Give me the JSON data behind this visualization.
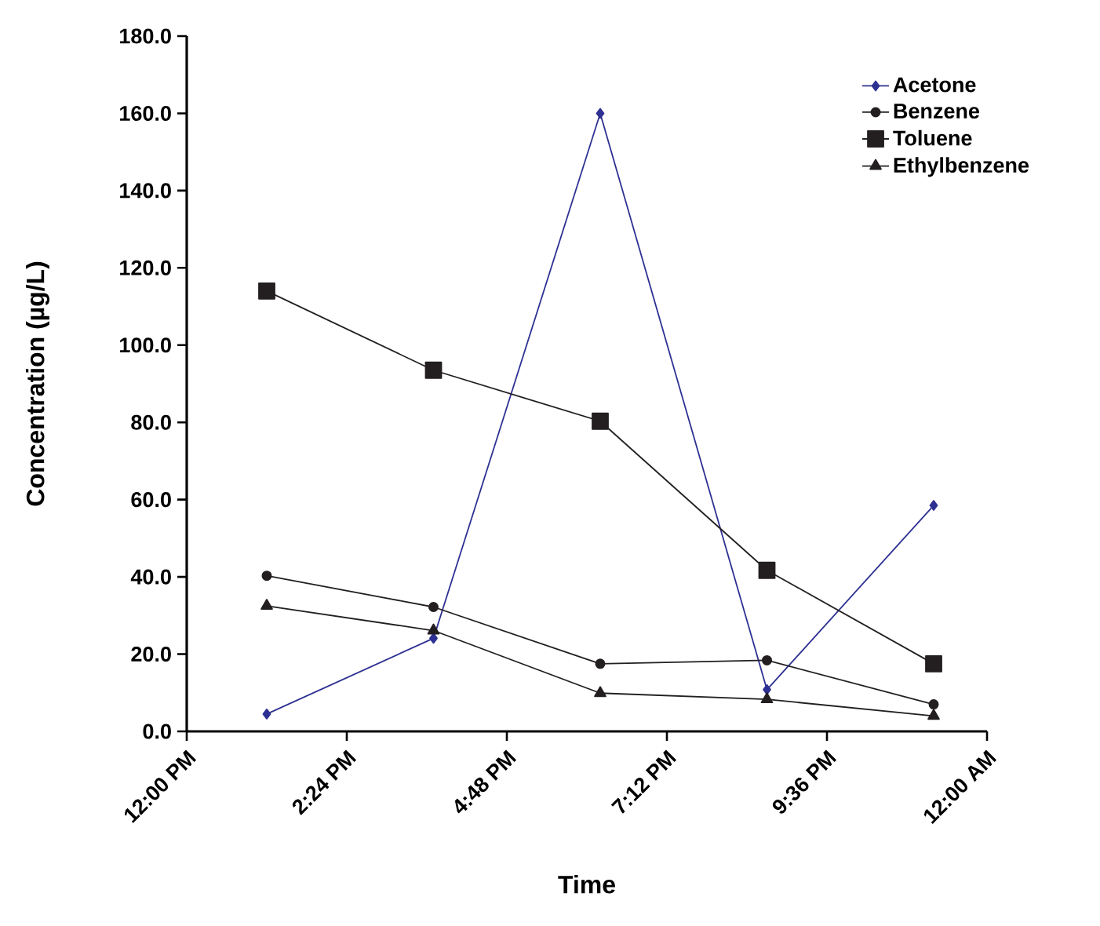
{
  "chart_data": {
    "type": "line",
    "xlabel": "Time",
    "ylabel": "Concentration (µg/L)",
    "x": [
      13.2,
      15.7,
      18.2,
      20.7,
      23.2
    ],
    "xlim": [
      12,
      24
    ],
    "xticks": [
      {
        "value": 12,
        "label": "12:00 PM"
      },
      {
        "value": 14.4,
        "label": "2:24 PM"
      },
      {
        "value": 16.8,
        "label": "4:48 PM"
      },
      {
        "value": 19.2,
        "label": "7:12 PM"
      },
      {
        "value": 21.6,
        "label": "9:36 PM"
      },
      {
        "value": 24,
        "label": "12:00 AM"
      }
    ],
    "ylim": [
      0,
      180
    ],
    "yticks": [
      {
        "value": 0,
        "label": "0.0"
      },
      {
        "value": 20,
        "label": "20.0"
      },
      {
        "value": 40,
        "label": "40.0"
      },
      {
        "value": 60,
        "label": "60.0"
      },
      {
        "value": 80,
        "label": "80.0"
      },
      {
        "value": 100,
        "label": "100.0"
      },
      {
        "value": 120,
        "label": "120.0"
      },
      {
        "value": 140,
        "label": "140.0"
      },
      {
        "value": 160,
        "label": "160.0"
      },
      {
        "value": 180,
        "label": "180.0"
      }
    ],
    "series": [
      {
        "name": "Acetone",
        "color": "#2e3192",
        "marker": "diamond",
        "values": [
          4.5,
          24.1,
          160,
          10.8,
          58.5
        ]
      },
      {
        "name": "Benzene",
        "color": "#231f20",
        "marker": "circle",
        "values": [
          40.3,
          32.2,
          17.5,
          18.4,
          7
        ]
      },
      {
        "name": "Toluene",
        "color": "#231f20",
        "marker": "square",
        "values": [
          114,
          93.5,
          80.3,
          41.7,
          17.5
        ]
      },
      {
        "name": "Ethylbenzene",
        "color": "#231f20",
        "marker": "triangle",
        "values": [
          32.5,
          26.1,
          9.9,
          8.3,
          4
        ]
      }
    ],
    "legend": "right",
    "grid": false,
    "line_style": "solid"
  }
}
